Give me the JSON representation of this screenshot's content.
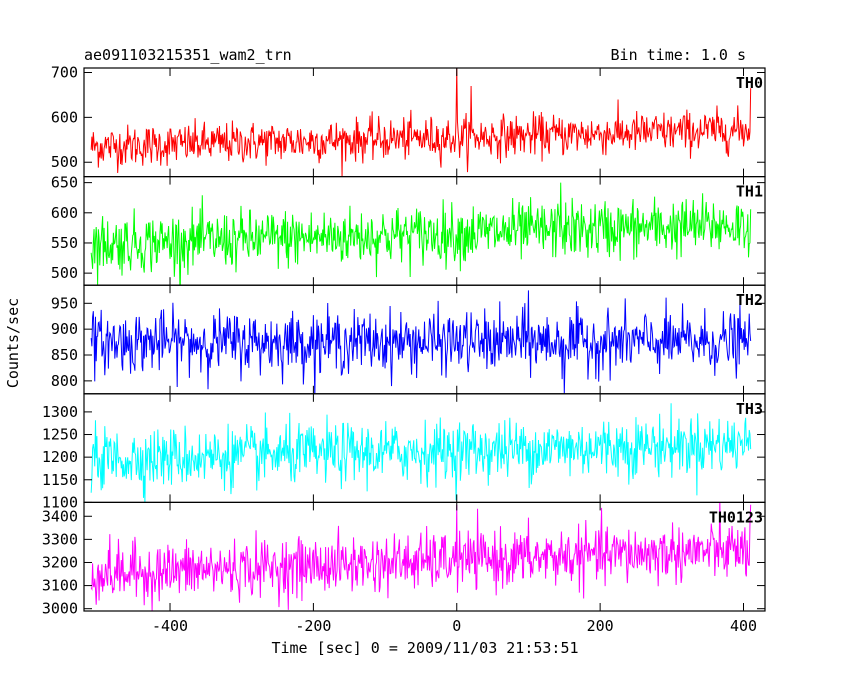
{
  "header": {
    "left_title": "ae091103215351_wam2_trn",
    "right_title": "Bin time: 1.0 s"
  },
  "chart_data": {
    "type": "line",
    "bin_time_s": 1.0,
    "xlabel": "Time [sec] 0 = 2009/11/03 21:53:51",
    "ylabel": "Counts/sec",
    "xlim": [
      -520,
      430
    ],
    "x_start": -510,
    "x_end": 410,
    "x_step": 1,
    "xticks": [
      -400,
      -200,
      0,
      200,
      400
    ],
    "panels": [
      {
        "name": "TH0",
        "color": "#ff0000",
        "ylim": [
          468,
          710
        ],
        "yticks": [
          500,
          600,
          700
        ],
        "trend_start": 535,
        "trend_end": 572,
        "noise_sd": 23,
        "peaks": [
          {
            "x": 0,
            "y": 710
          },
          {
            "x": 20,
            "y": 670
          },
          {
            "x": 410,
            "y": 665
          }
        ]
      },
      {
        "name": "TH1",
        "color": "#00ff00",
        "ylim": [
          480,
          660
        ],
        "yticks": [
          500,
          550,
          600,
          650
        ],
        "trend_start": 548,
        "trend_end": 580,
        "noise_sd": 24,
        "peaks": [
          {
            "x": 145,
            "y": 650
          }
        ]
      },
      {
        "name": "TH2",
        "color": "#0000ff",
        "ylim": [
          775,
          985
        ],
        "yticks": [
          800,
          850,
          900,
          950
        ],
        "trend_start": 875,
        "trend_end": 875,
        "noise_sd": 29,
        "peaks": [
          {
            "x": 100,
            "y": 975
          },
          {
            "x": 150,
            "y": 775
          }
        ]
      },
      {
        "name": "TH3",
        "color": "#00ffff",
        "ylim": [
          1100,
          1340
        ],
        "yticks": [
          1100,
          1150,
          1200,
          1250,
          1300
        ],
        "trend_start": 1195,
        "trend_end": 1230,
        "noise_sd": 33,
        "peaks": []
      },
      {
        "name": "TH0123",
        "color": "#ff00ff",
        "ylim": [
          2990,
          3460
        ],
        "yticks": [
          3000,
          3100,
          3200,
          3300,
          3400
        ],
        "trend_start": 3150,
        "trend_end": 3255,
        "noise_sd": 62,
        "peaks": [
          {
            "x": 0,
            "y": 3450
          },
          {
            "x": 410,
            "y": 3450
          }
        ]
      }
    ]
  }
}
